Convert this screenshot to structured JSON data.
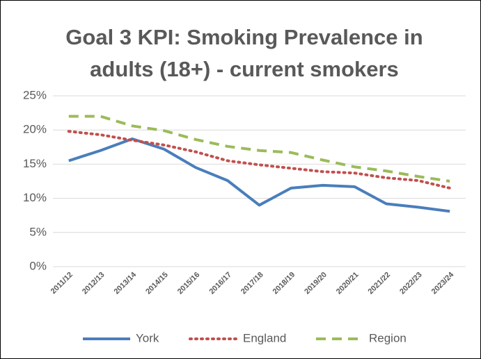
{
  "chart_data": {
    "type": "line",
    "title": "Goal 3 KPI: Smoking Prevalence in adults (18+) - current smokers",
    "categories": [
      "2011/12",
      "2012/13",
      "2013/14",
      "2014/15",
      "2015/16",
      "2016/17",
      "2017/18",
      "2018/19",
      "2019/20",
      "2020/21",
      "2021/22",
      "2022/23",
      "2023/24"
    ],
    "series": [
      {
        "name": "York",
        "color": "#4a7ebb",
        "style": "solid",
        "values": [
          15.5,
          17.0,
          18.7,
          17.2,
          14.5,
          12.6,
          9.0,
          11.5,
          11.9,
          11.7,
          9.2,
          8.7,
          8.1
        ]
      },
      {
        "name": "England",
        "color": "#c0504d",
        "style": "dotted",
        "values": [
          19.8,
          19.3,
          18.5,
          17.8,
          16.8,
          15.5,
          14.9,
          14.4,
          13.9,
          13.7,
          13.0,
          12.6,
          11.5
        ]
      },
      {
        "name": "Region",
        "color": "#9bbb59",
        "style": "dashed",
        "values": [
          22.0,
          22.0,
          20.6,
          19.9,
          18.6,
          17.6,
          17.0,
          16.7,
          15.6,
          14.6,
          14.0,
          13.2,
          12.5
        ]
      }
    ],
    "ylim": [
      0,
      25
    ],
    "yticks": [
      {
        "value": 0,
        "label": "0%"
      },
      {
        "value": 5,
        "label": "5%"
      },
      {
        "value": 10,
        "label": "10%"
      },
      {
        "value": 15,
        "label": "15%"
      },
      {
        "value": 20,
        "label": "20%"
      },
      {
        "value": 25,
        "label": "25%"
      }
    ],
    "grid": true,
    "legend": "bottom"
  }
}
